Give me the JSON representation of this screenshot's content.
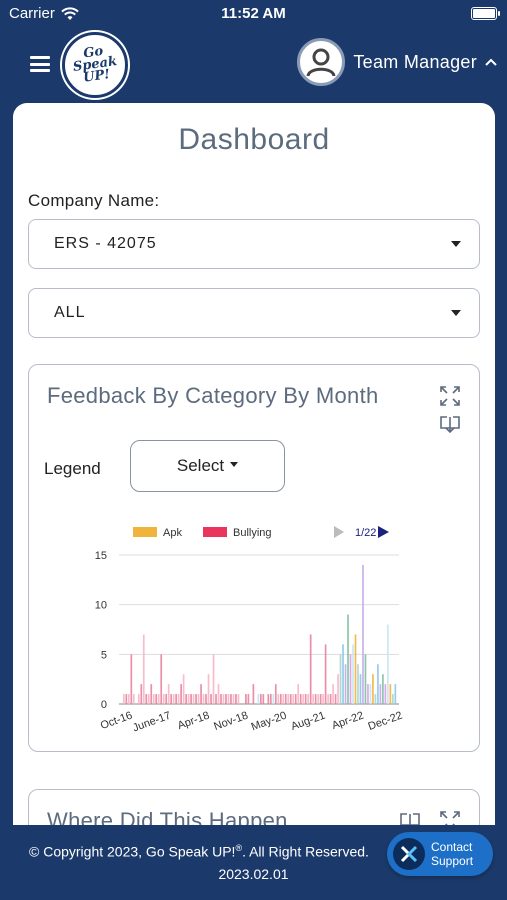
{
  "status_bar": {
    "carrier": "Carrier",
    "time": "11:52 AM"
  },
  "header": {
    "logo_line1": "Go",
    "logo_line2": "Speak",
    "logo_line3": "UP!",
    "user_name": "Team Manager",
    "user_chevron": "^"
  },
  "dashboard": {
    "title": "Dashboard",
    "company_label": "Company Name:",
    "company_value": "ERS - 42075",
    "filter_value": "ALL"
  },
  "feedback_panel": {
    "title": "Feedback By Category By Month",
    "legend_label": "Legend",
    "legend_select": "Select",
    "legend_page": "1/22",
    "icons": [
      "expand-icon",
      "download-icon"
    ]
  },
  "where_panel": {
    "title": "Where Did This Happen",
    "icons": [
      "download-icon",
      "expand-icon"
    ]
  },
  "footer": {
    "copyright": "© Copyright 2023, Go Speak UP!",
    "reg_mark": "®",
    "rights": ". All Right Reserved.",
    "version": "2023.02.01"
  },
  "contact": {
    "line1": "Contact",
    "line2": "Support"
  },
  "colors": {
    "navy": "#1b3a6b",
    "apk": "#f0b43c",
    "bullying": "#e8365d",
    "contact": "#1e6fc7"
  },
  "chart_data": {
    "type": "bar",
    "legend": [
      {
        "name": "Apk",
        "color": "#f0b43c"
      },
      {
        "name": "Bullying",
        "color": "#e8365d"
      }
    ],
    "x_tick_labels": [
      "Oct-16",
      "June-17",
      "Apr-18",
      "Nov-18",
      "May-20",
      "Aug-21",
      "Apr-22",
      "Dec-22"
    ],
    "y_ticks": [
      0,
      5,
      10,
      15
    ],
    "ylim": [
      0,
      15
    ],
    "grid": true,
    "legend_position": "top",
    "values": [
      1,
      1,
      1,
      5,
      1,
      0,
      1,
      2,
      7,
      1,
      1,
      2,
      1,
      1,
      1,
      5,
      1,
      1,
      2,
      1,
      1,
      1,
      1,
      2,
      3,
      1,
      1,
      1,
      1,
      1,
      1,
      2,
      1,
      1,
      3,
      1,
      5,
      1,
      2,
      1,
      1,
      1,
      1,
      1,
      1,
      1,
      1,
      0,
      0,
      1,
      1,
      0,
      2,
      0,
      1,
      1,
      1,
      0,
      1,
      1,
      1,
      2,
      1,
      1,
      1,
      1,
      1,
      1,
      1,
      1,
      2,
      1,
      1,
      1,
      1,
      7,
      1,
      1,
      1,
      1,
      1,
      6,
      1,
      1,
      2,
      1,
      3,
      5,
      6,
      4,
      9,
      5,
      6,
      7,
      4,
      3,
      14,
      5,
      2,
      2,
      3,
      1,
      4,
      2,
      3,
      2,
      8,
      2,
      1,
      2
    ]
  }
}
